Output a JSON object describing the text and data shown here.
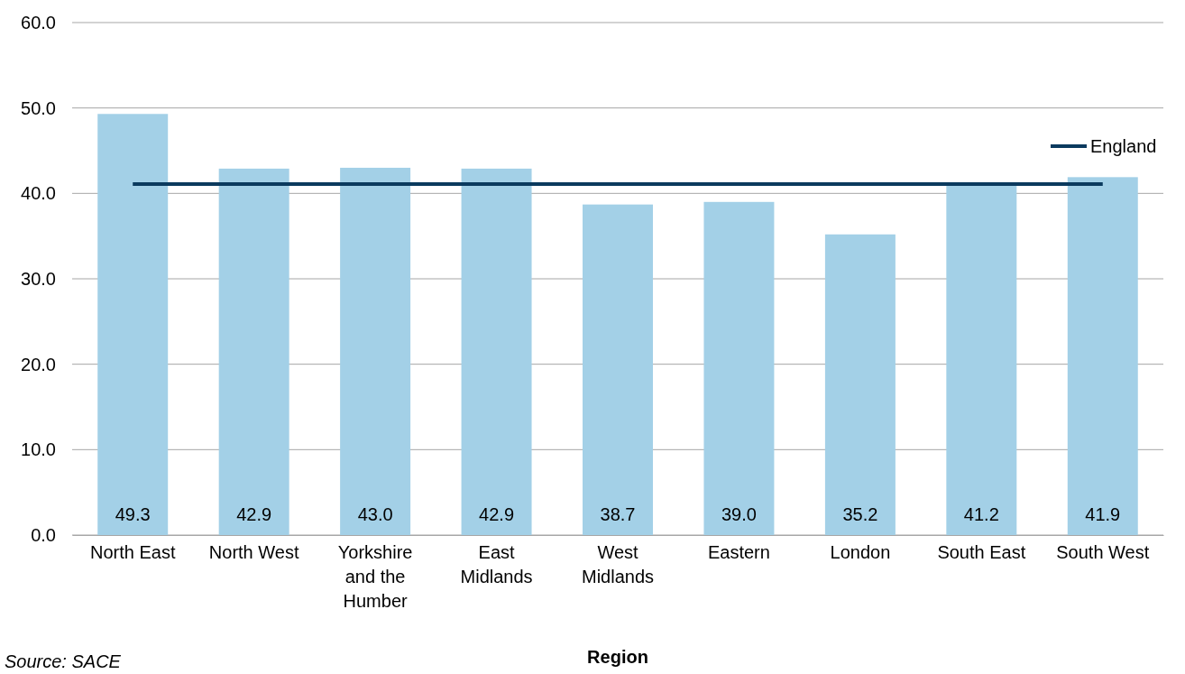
{
  "chart_data": {
    "type": "bar",
    "xlabel": "Region",
    "categories": [
      "North East",
      "North West",
      "Yorkshire and the Humber",
      "East Midlands",
      "West Midlands",
      "Eastern",
      "London",
      "South East",
      "South West"
    ],
    "series": [
      {
        "color": "#a3d0e7",
        "values": [
          49.3,
          42.9,
          43.0,
          42.9,
          38.7,
          39.0,
          35.2,
          41.2,
          41.9
        ],
        "value_labels": [
          "49.3",
          "42.9",
          "43.0",
          "42.9",
          "38.7",
          "39.0",
          "35.2",
          "41.2",
          "41.9"
        ]
      },
      {
        "type": "line",
        "name": "England",
        "color": "#0b3a5e",
        "values": [
          41.1,
          41.1,
          41.1,
          41.1,
          41.1,
          41.1,
          41.1,
          41.1,
          41.1
        ]
      }
    ],
    "ylim": [
      0,
      60
    ],
    "yticks": [
      {
        "value": 0,
        "label": "0.0"
      },
      {
        "value": 10,
        "label": "10.0"
      },
      {
        "value": 20,
        "label": "20.0"
      },
      {
        "value": 30,
        "label": "30.0"
      },
      {
        "value": 40,
        "label": "40.0"
      },
      {
        "value": 50,
        "label": "50.0"
      },
      {
        "value": 60,
        "label": "60.0"
      }
    ],
    "grid": "y",
    "legend": "top right",
    "marker": "none",
    "line_style": "solid",
    "annotations": [
      "Source: SACE"
    ]
  }
}
